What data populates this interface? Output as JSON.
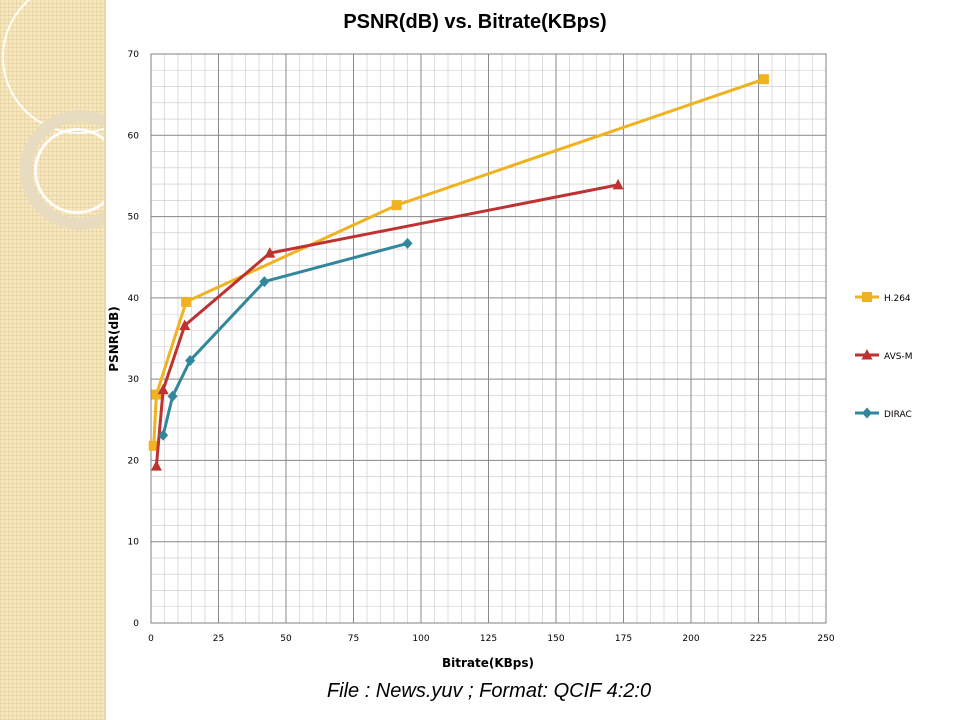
{
  "chart_data": {
    "type": "line",
    "title": "PSNR(dB) vs. Bitrate(KBps)",
    "xlabel": "Bitrate(KBps)",
    "ylabel": "PSNR(dB)",
    "xlim": [
      0,
      250
    ],
    "ylim": [
      0,
      70
    ],
    "x_ticks": [
      "0",
      "25",
      "50",
      "75",
      "100",
      "125",
      "150",
      "175",
      "200",
      "225",
      "250"
    ],
    "y_ticks": [
      "0",
      "10",
      "20",
      "30",
      "40",
      "50",
      "60",
      "70"
    ],
    "grid": "on (major and minor)",
    "legend_position": "right",
    "series": [
      {
        "name": "H.264",
        "color": "#f0b21e",
        "marker": "square",
        "points": [
          [
            1,
            21.8
          ],
          [
            2,
            28.1
          ],
          [
            13,
            39.5
          ],
          [
            91,
            51.4
          ],
          [
            227,
            66.9
          ]
        ]
      },
      {
        "name": "AVS-M",
        "color": "#be3232",
        "marker": "triangle",
        "points": [
          [
            2,
            19.3
          ],
          [
            4.5,
            28.7
          ],
          [
            12.5,
            36.6
          ],
          [
            44,
            45.5
          ],
          [
            173,
            53.9
          ]
        ]
      },
      {
        "name": "DIRAC",
        "color": "#33879a",
        "marker": "diamond",
        "points": [
          [
            4.5,
            23.1
          ],
          [
            8,
            27.9
          ],
          [
            14.5,
            32.3
          ],
          [
            42,
            42
          ],
          [
            95,
            46.7
          ]
        ]
      }
    ]
  },
  "caption": "File : News.yuv ; Format: QCIF 4:2:0"
}
